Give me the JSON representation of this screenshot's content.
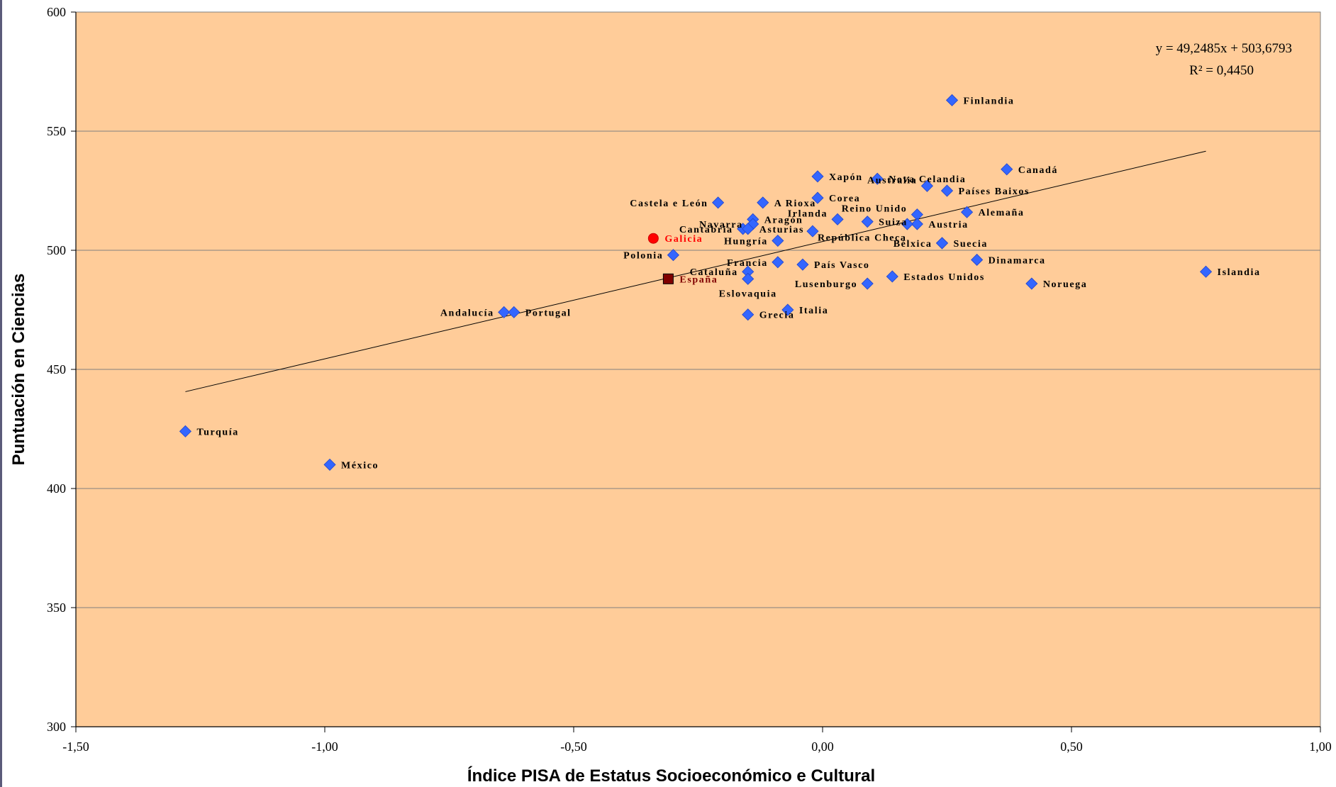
{
  "chart_data": {
    "type": "scatter",
    "title": "",
    "xlabel": "Índice PISA de Estatus Socioeconómico e Cultural",
    "ylabel": "Puntuación en Ciencias",
    "xlim": [
      -1.5,
      1.0
    ],
    "ylim": [
      300,
      600
    ],
    "x_ticks": [
      -1.5,
      -1.0,
      -0.5,
      0.0,
      0.5,
      1.0
    ],
    "x_tick_labels": [
      "-1,50",
      "-1,00",
      "-0,50",
      "0,00",
      "0,50",
      "1,00"
    ],
    "y_ticks": [
      300,
      350,
      400,
      450,
      500,
      550,
      600
    ],
    "y_tick_labels": [
      "300",
      "350",
      "400",
      "450",
      "500",
      "550",
      "600"
    ],
    "grid": "horizontal",
    "colors": {
      "plot_background": "#FFCC99",
      "gridline": "#808080",
      "marker": "#3366FF",
      "galicia": "#FF0000",
      "espana": "#800000",
      "label_default": "#000000",
      "label_galicia": "#FF0000",
      "label_espana": "#800000"
    },
    "trendline": {
      "slope": 49.2485,
      "intercept": 503.6793,
      "x_range": [
        -1.28,
        0.77
      ],
      "equation_label": "y = 49,2485x + 503,6793",
      "r2_label": "R² = 0,4450"
    },
    "points": [
      {
        "label": "Finlandia",
        "x": 0.26,
        "y": 563,
        "marker": "diamond",
        "label_pos": "right"
      },
      {
        "label": "Canadá",
        "x": 0.37,
        "y": 534,
        "marker": "diamond",
        "label_pos": "right"
      },
      {
        "label": "Xapón",
        "x": -0.01,
        "y": 531,
        "marker": "diamond",
        "label_pos": "right"
      },
      {
        "label": "Nova Celandia",
        "x": 0.11,
        "y": 530,
        "marker": "diamond",
        "label_pos": "right"
      },
      {
        "label": "Australia",
        "x": 0.21,
        "y": 527,
        "marker": "diamond",
        "label_pos": "left-up"
      },
      {
        "label": "Países Baixos",
        "x": 0.25,
        "y": 525,
        "marker": "diamond",
        "label_pos": "right"
      },
      {
        "label": "Corea",
        "x": -0.01,
        "y": 522,
        "marker": "diamond",
        "label_pos": "right"
      },
      {
        "label": "Reino Unido",
        "x": 0.19,
        "y": 515,
        "marker": "diamond",
        "label_pos": "left-up"
      },
      {
        "label": "Castela e León",
        "x": -0.21,
        "y": 520,
        "marker": "diamond",
        "label_pos": "left"
      },
      {
        "label": "A Rioxa",
        "x": -0.12,
        "y": 520,
        "marker": "diamond",
        "label_pos": "right"
      },
      {
        "label": "Alemaña",
        "x": 0.29,
        "y": 516,
        "marker": "diamond",
        "label_pos": "right"
      },
      {
        "label": "Irlanda",
        "x": 0.03,
        "y": 513,
        "marker": "diamond",
        "label_pos": "left-up"
      },
      {
        "label": "Aragón",
        "x": -0.14,
        "y": 513,
        "marker": "diamond",
        "label_pos": "right"
      },
      {
        "label": "Suiza",
        "x": 0.09,
        "y": 512,
        "marker": "diamond",
        "label_pos": "right"
      },
      {
        "label": "Austria",
        "x": 0.19,
        "y": 511,
        "marker": "diamond",
        "label_pos": "right"
      },
      {
        "label": "",
        "x": 0.17,
        "y": 511,
        "marker": "diamond",
        "label_pos": "none"
      },
      {
        "label": "Navarra",
        "x": -0.14,
        "y": 511,
        "marker": "diamond",
        "label_pos": "left"
      },
      {
        "label": "Cantabria",
        "x": -0.16,
        "y": 509,
        "marker": "diamond",
        "label_pos": "left"
      },
      {
        "label": "Asturias",
        "x": -0.15,
        "y": 509,
        "marker": "diamond",
        "label_pos": "right"
      },
      {
        "label": "República Checa",
        "x": -0.02,
        "y": 508,
        "marker": "diamond",
        "label_pos": "right-down"
      },
      {
        "label": "Hungría",
        "x": -0.09,
        "y": 504,
        "marker": "diamond",
        "label_pos": "left"
      },
      {
        "label": "Bélxica",
        "x": 0.24,
        "y": 503,
        "marker": "diamond",
        "label_pos": "left"
      },
      {
        "label": "Suecia",
        "x": 0.24,
        "y": 503,
        "marker": "diamond",
        "label_pos": "right"
      },
      {
        "label": "Galicia",
        "x": -0.34,
        "y": 505,
        "marker": "circle",
        "label_pos": "right"
      },
      {
        "label": "Polonia",
        "x": -0.3,
        "y": 498,
        "marker": "diamond",
        "label_pos": "left"
      },
      {
        "label": "Dinamarca",
        "x": 0.31,
        "y": 496,
        "marker": "diamond",
        "label_pos": "right"
      },
      {
        "label": "Francia",
        "x": -0.09,
        "y": 495,
        "marker": "diamond",
        "label_pos": "left"
      },
      {
        "label": "País Vasco",
        "x": -0.04,
        "y": 494,
        "marker": "diamond",
        "label_pos": "right"
      },
      {
        "label": "Cataluña",
        "x": -0.15,
        "y": 491,
        "marker": "diamond",
        "label_pos": "left"
      },
      {
        "label": "Islandia",
        "x": 0.77,
        "y": 491,
        "marker": "diamond",
        "label_pos": "right"
      },
      {
        "label": "Estados Unidos",
        "x": 0.14,
        "y": 489,
        "marker": "diamond",
        "label_pos": "right"
      },
      {
        "label": "España",
        "x": -0.31,
        "y": 488,
        "marker": "square",
        "label_pos": "right"
      },
      {
        "label": "",
        "x": -0.15,
        "y": 488,
        "marker": "diamond",
        "label_pos": "none"
      },
      {
        "label": "Lusenburgo",
        "x": 0.09,
        "y": 486,
        "marker": "diamond",
        "label_pos": "left"
      },
      {
        "label": "Noruega",
        "x": 0.42,
        "y": 486,
        "marker": "diamond",
        "label_pos": "right"
      },
      {
        "label": "Eslovaquia",
        "x": -0.15,
        "y": 482,
        "marker": "none",
        "label_pos": "text-only"
      },
      {
        "label": "Italia",
        "x": -0.07,
        "y": 475,
        "marker": "diamond",
        "label_pos": "right"
      },
      {
        "label": "Grecia",
        "x": -0.15,
        "y": 473,
        "marker": "diamond",
        "label_pos": "right"
      },
      {
        "label": "Andalucía",
        "x": -0.64,
        "y": 474,
        "marker": "diamond",
        "label_pos": "left"
      },
      {
        "label": "Portugal",
        "x": -0.62,
        "y": 474,
        "marker": "diamond",
        "label_pos": "right"
      },
      {
        "label": "Turquía",
        "x": -1.28,
        "y": 424,
        "marker": "diamond",
        "label_pos": "right"
      },
      {
        "label": "México",
        "x": -0.99,
        "y": 410,
        "marker": "diamond",
        "label_pos": "right"
      }
    ]
  }
}
